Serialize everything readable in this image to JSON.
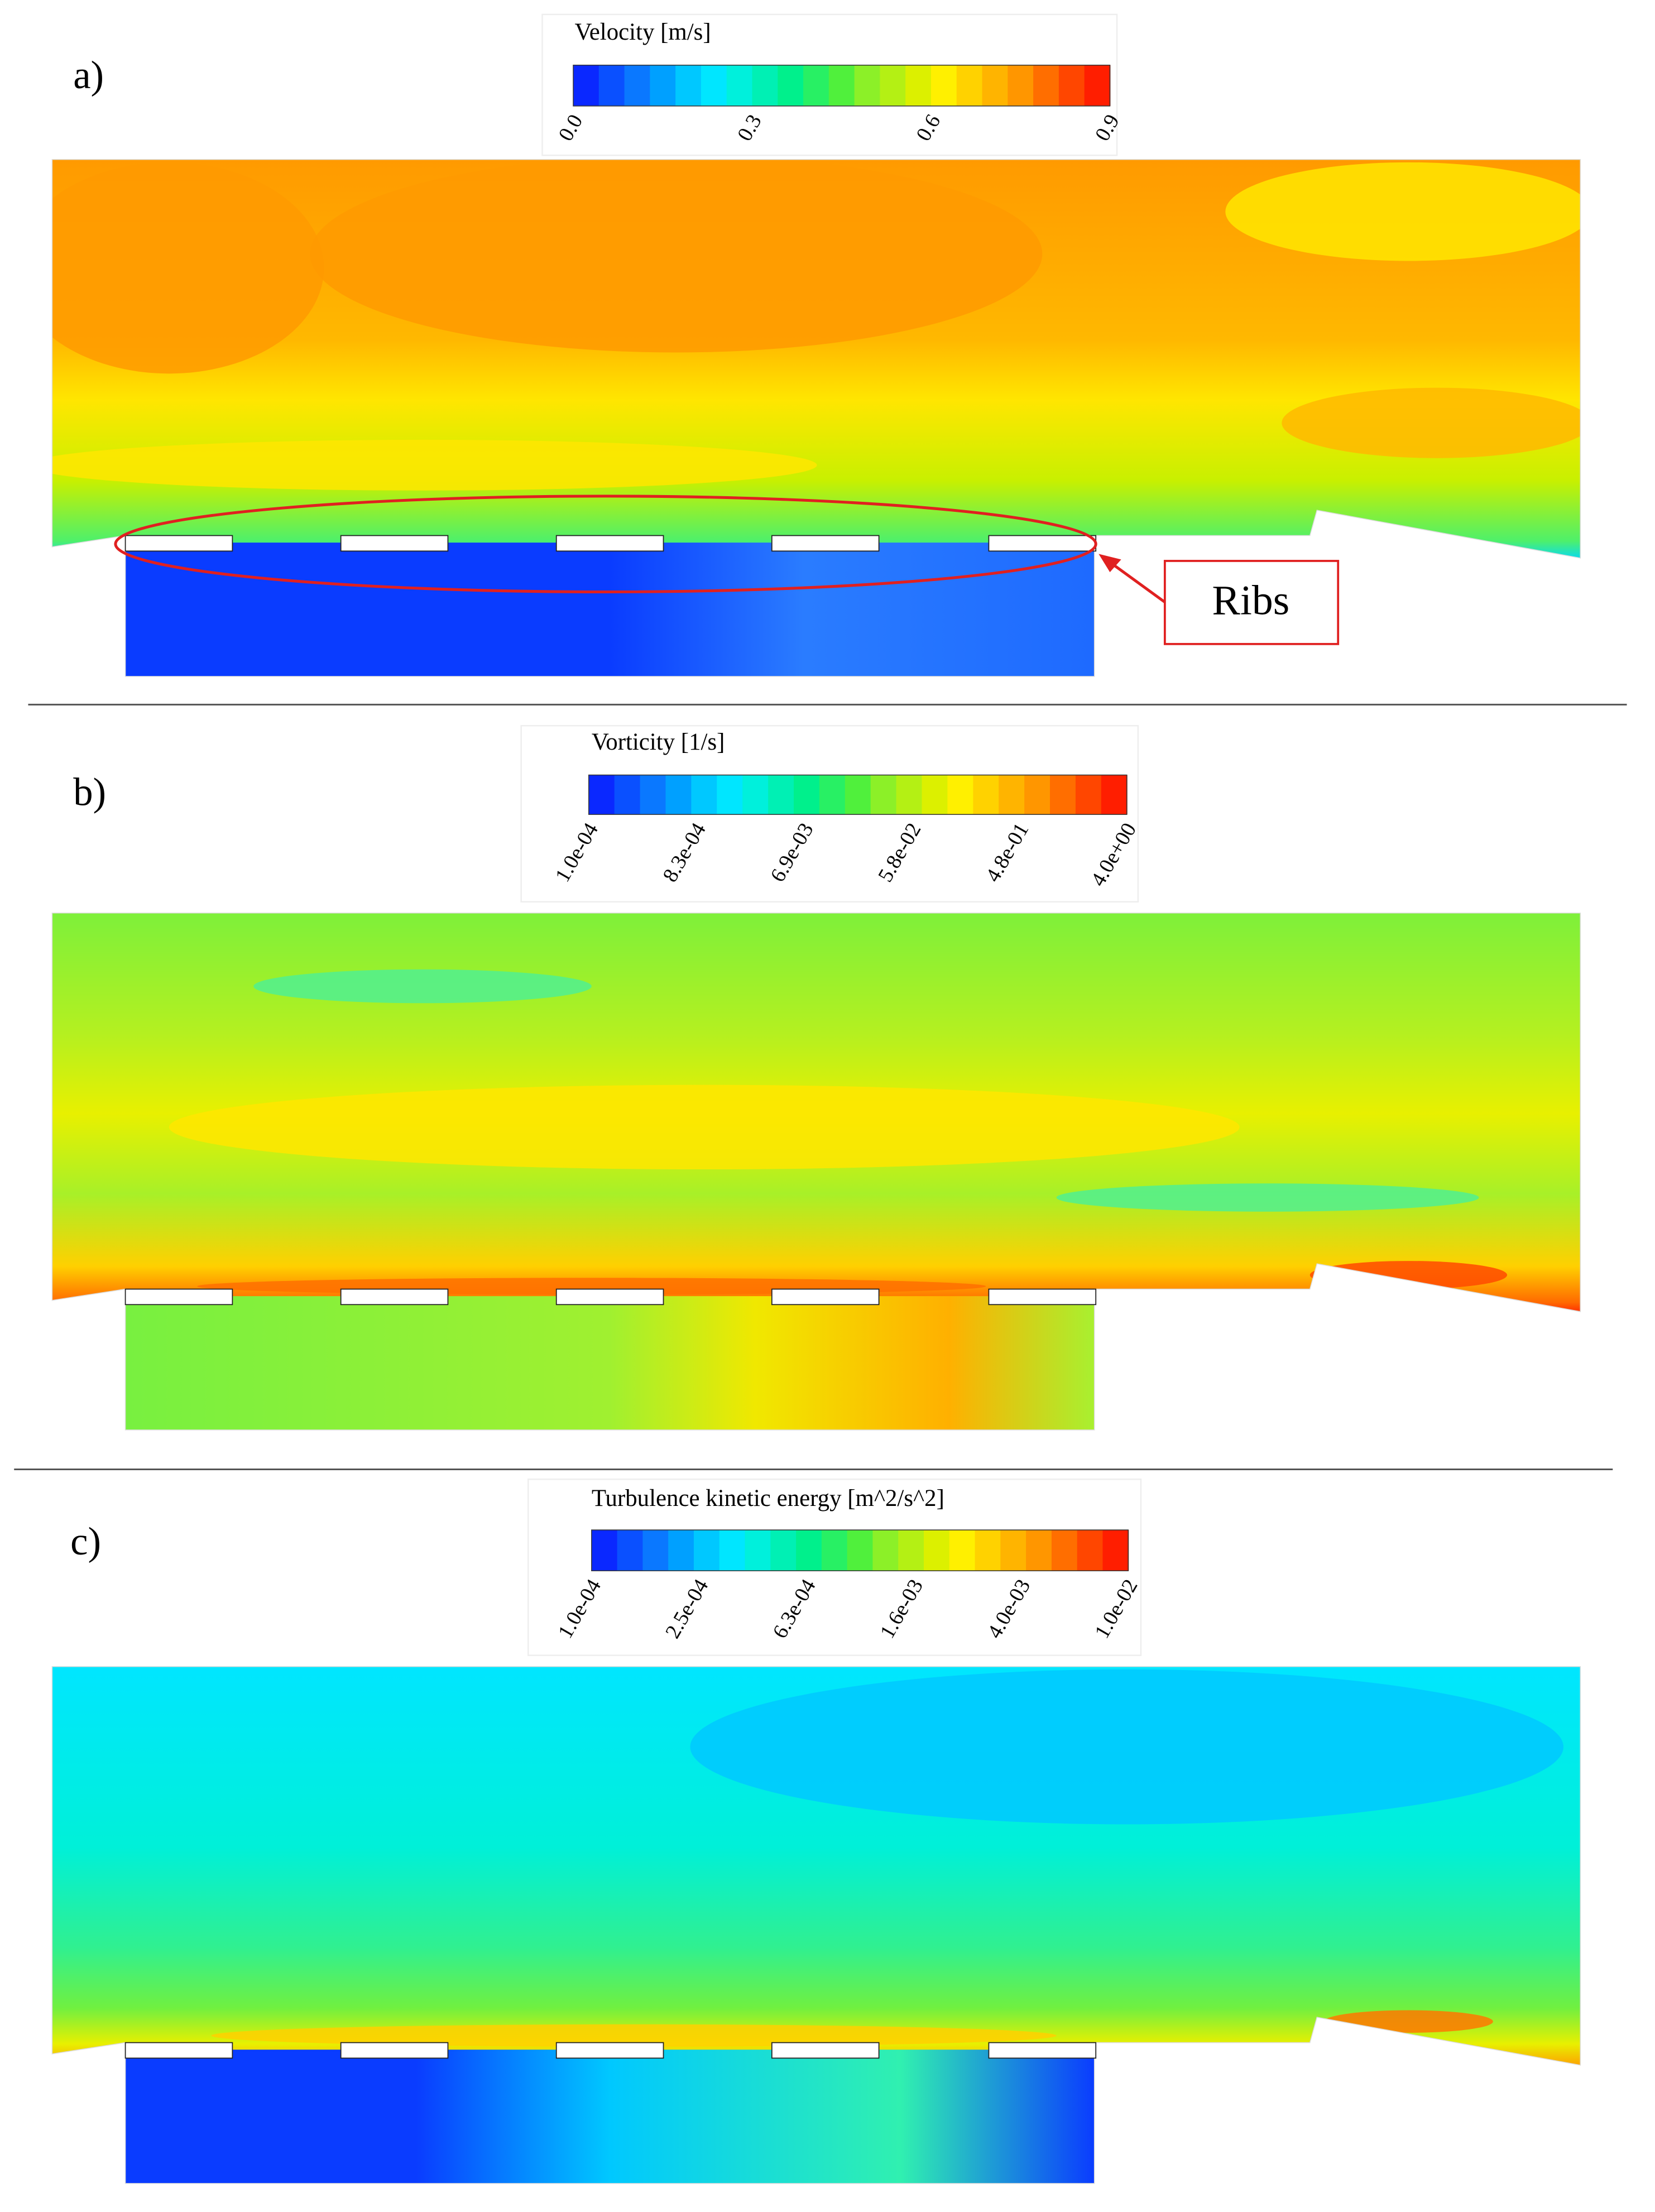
{
  "panels": [
    {
      "label": "a)",
      "colorbar": {
        "title": "Velocity [m/s]",
        "ticks": [
          "0.0",
          "0.3",
          "0.6",
          "0.9"
        ]
      },
      "annotation": "Ribs"
    },
    {
      "label": "b)",
      "colorbar": {
        "title": "Vorticity [1/s]",
        "ticks": [
          "1.0e-04",
          "8.3e-04",
          "6.9e-03",
          "5.8e-02",
          "4.8e-01",
          "4.0e+00"
        ]
      }
    },
    {
      "label": "c)",
      "colorbar": {
        "title": "Turbulence kinetic energy [m^2/s^2]",
        "ticks": [
          "1.0e-04",
          "2.5e-04",
          "6.3e-04",
          "1.6e-03",
          "4.0e-03",
          "1.0e-02"
        ]
      }
    }
  ]
}
